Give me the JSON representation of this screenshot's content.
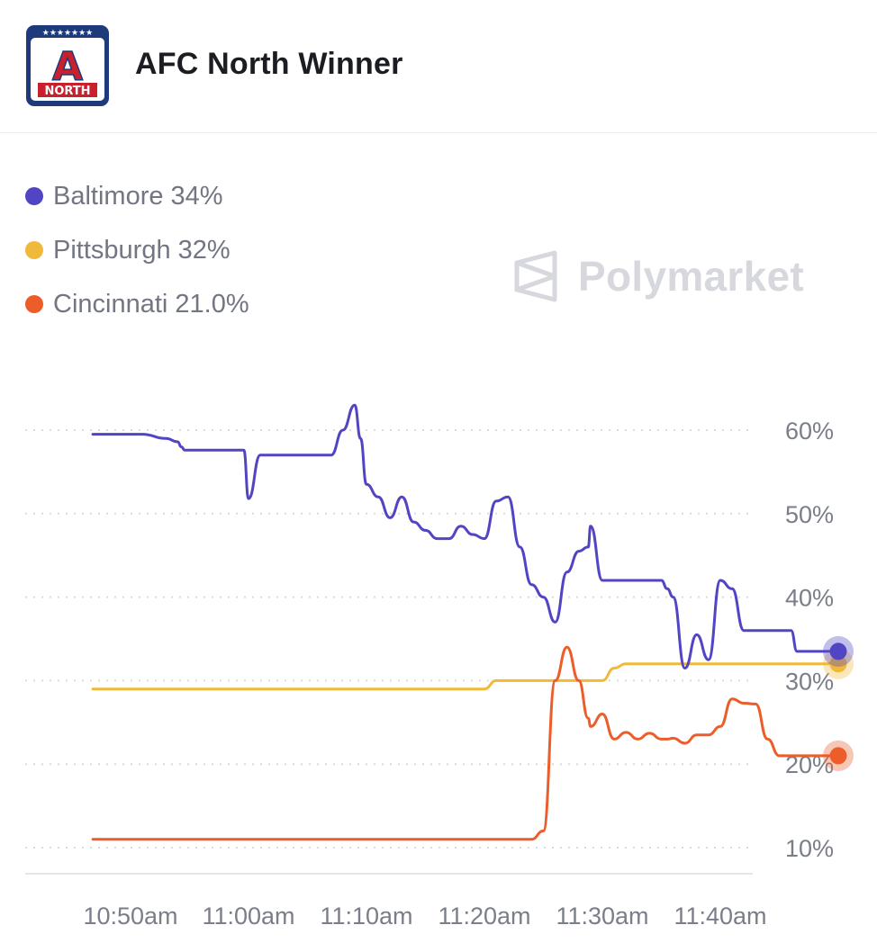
{
  "header": {
    "title": "AFC North Winner",
    "logo_letter": "A",
    "logo_text": "NORTH",
    "logo_stars": "★★★★★★★"
  },
  "legend": [
    {
      "label": "Baltimore 34%",
      "color": "#5145c4"
    },
    {
      "label": "Pittsburgh 32%",
      "color": "#f0b93a"
    },
    {
      "label": "Cincinnati 21.0%",
      "color": "#ec5d2a"
    }
  ],
  "watermark": {
    "text": "Polymarket",
    "icon": "polymarket-logo-icon"
  },
  "chart_data": {
    "type": "line",
    "x_ticks": [
      "10:50am",
      "11:00am",
      "11:10am",
      "11:20am",
      "11:30am",
      "11:40am"
    ],
    "y_ticks": [
      "10%",
      "20%",
      "30%",
      "40%",
      "50%",
      "60%"
    ],
    "ylim": [
      10,
      60
    ],
    "grid": true,
    "x_minutes": [
      -3.2,
      -1.5,
      0,
      1,
      3,
      4,
      4.3,
      4.6,
      5,
      8,
      9,
      9.6,
      10,
      11,
      12,
      12.6,
      13,
      14,
      15,
      16,
      17,
      18,
      19,
      19.5,
      20,
      21,
      22,
      23,
      24,
      25,
      26,
      27,
      28,
      29,
      30,
      31,
      32,
      33,
      34,
      35,
      36,
      37,
      38,
      38.8,
      39,
      40,
      41,
      42,
      43,
      44,
      45,
      45.5,
      46,
      47,
      48,
      49,
      50,
      51,
      52,
      53,
      54,
      55,
      55.5,
      56,
      56.5,
      57,
      57.5,
      58,
      59,
      60
    ],
    "series": [
      {
        "name": "Baltimore",
        "color": "#5145c4",
        "values": [
          59.5,
          59.5,
          59.5,
          59.5,
          59,
          58.6,
          58,
          57.6,
          57.6,
          57.6,
          57.6,
          57.6,
          51.8,
          57,
          57,
          57,
          57,
          57,
          57,
          57,
          57,
          60,
          63,
          59,
          53.5,
          52,
          49.5,
          52,
          49,
          48,
          47,
          47,
          48.5,
          47.5,
          47,
          51.5,
          52,
          46,
          41.5,
          40,
          37,
          43,
          45.5,
          46,
          48.5,
          42,
          42,
          42,
          42,
          42,
          42,
          41,
          40,
          31.5,
          35.5,
          32.5,
          42,
          41,
          36,
          36,
          36,
          36,
          36,
          36,
          33.5,
          33.5,
          33.5,
          33.5,
          33.5,
          33.5
        ],
        "endpoint": 33.5
      },
      {
        "name": "Pittsburgh",
        "color": "#f0b93a",
        "values": [
          29,
          29,
          29,
          29,
          29,
          29,
          29,
          29,
          29,
          29,
          29,
          29,
          29,
          29,
          29,
          29,
          29,
          29,
          29,
          29,
          29,
          29,
          29,
          29,
          29,
          29,
          29,
          29,
          29,
          29,
          29,
          29,
          29,
          29,
          29,
          30,
          30,
          30,
          30,
          30,
          30,
          30,
          30,
          30,
          30,
          30,
          31.5,
          32,
          32,
          32,
          32,
          32,
          32,
          32,
          32,
          32,
          32,
          32,
          32,
          32,
          32,
          32,
          32,
          32,
          32,
          32,
          32,
          32,
          32,
          32
        ],
        "endpoint": 32
      },
      {
        "name": "Cincinnati",
        "color": "#ec5d2a",
        "values": [
          11,
          11,
          11,
          11,
          11,
          11,
          11,
          11,
          11,
          11,
          11,
          11,
          11,
          11,
          11,
          11,
          11,
          11,
          11,
          11,
          11,
          11,
          11,
          11,
          11,
          11,
          11,
          11,
          11,
          11,
          11,
          11,
          11,
          11,
          11,
          11,
          11,
          11,
          11,
          12,
          30,
          34,
          30,
          25.5,
          24.5,
          26,
          23,
          23.8,
          23,
          23.7,
          23,
          23,
          23.1,
          22.5,
          23.5,
          23.5,
          24.5,
          27.8,
          27.3,
          27.2,
          23,
          21,
          21,
          21,
          21,
          21,
          21,
          21,
          21,
          21
        ],
        "endpoint": 21
      }
    ]
  }
}
